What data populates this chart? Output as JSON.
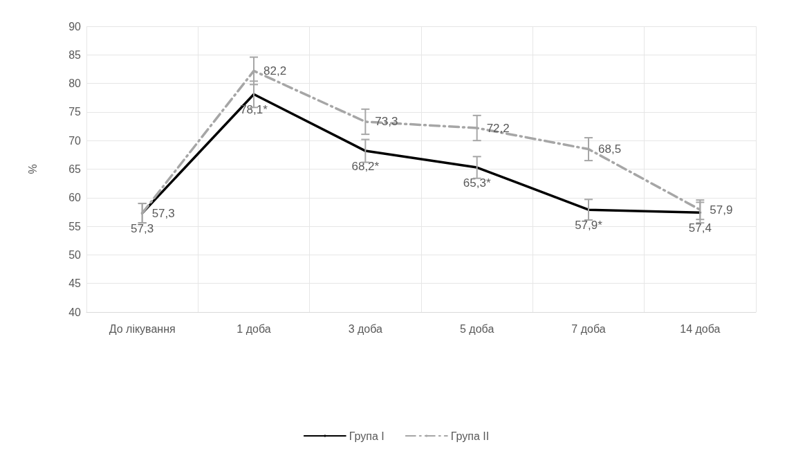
{
  "chart_data": {
    "type": "line",
    "ylabel": "%",
    "categories": [
      "До лікування",
      "1 доба",
      "3 доба",
      "5 доба",
      "7 доба",
      "14 доба"
    ],
    "ylim": [
      40,
      90
    ],
    "yticks": [
      40,
      45,
      50,
      55,
      60,
      65,
      70,
      75,
      80,
      85,
      90
    ],
    "grid": true,
    "legend": "bottom",
    "marker": "none",
    "series": [
      {
        "name": "Група I",
        "color": "#000000",
        "line_style": "solid",
        "values": [
          57.3,
          78.1,
          68.2,
          65.3,
          57.9,
          57.4
        ],
        "errors": [
          1.7,
          2.3,
          2.0,
          1.9,
          1.8,
          1.8
        ],
        "value_labels": [
          "57,3",
          "78,1*",
          "68,2*",
          "65,3*",
          "57,9*",
          "57,4"
        ]
      },
      {
        "name": "Група II",
        "color": "#a6a6a6",
        "line_style": "dashed",
        "values": [
          57.3,
          82.2,
          73.3,
          72.2,
          68.5,
          57.9
        ],
        "errors": [
          1.7,
          2.4,
          2.2,
          2.2,
          2.0,
          1.7
        ],
        "value_labels": [
          "57,3",
          "82,2",
          "73,3",
          "72,2",
          "68,5",
          "57,9"
        ]
      }
    ]
  }
}
